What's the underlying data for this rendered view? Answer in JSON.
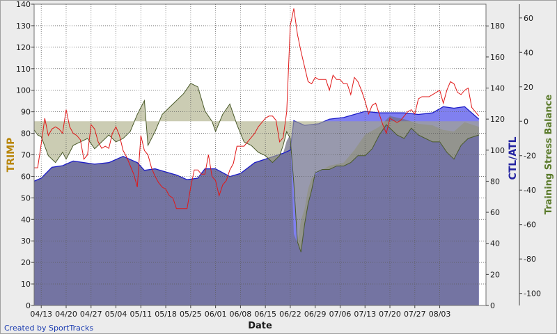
{
  "credit": "Created by SportTracks",
  "colors": {
    "trimp": "#e01818",
    "ctl_fill": "#8080f0",
    "ctl_line": "#1c1cc8",
    "atl_fill": "#707088",
    "tsb_fill": "#a8aa80",
    "tsb_line": "#4a5a2a",
    "left_axis_label": "#b8860b",
    "middle_axis_label": "#2020a0",
    "right_axis_label": "#5a7a2a"
  },
  "chart_data": {
    "type": "line",
    "xlabel": "Date",
    "x_ticks": [
      "04/13",
      "04/20",
      "04/27",
      "05/04",
      "05/11",
      "05/18",
      "05/25",
      "06/01",
      "06/08",
      "06/15",
      "06/22",
      "06/29",
      "07/06",
      "07/13",
      "07/20",
      "07/27",
      "08/03"
    ],
    "x_range": [
      "04/11",
      "08/16"
    ],
    "grid": true,
    "axes": {
      "left": {
        "label": "TRIMP",
        "ylim": [
          0,
          140
        ],
        "ticks": [
          0,
          10,
          20,
          30,
          40,
          50,
          60,
          70,
          80,
          90,
          100,
          110,
          120,
          130,
          140
        ]
      },
      "middle": {
        "label": "CTL/ATL",
        "ylim": [
          0,
          194
        ],
        "ticks": [
          0,
          20,
          40,
          60,
          80,
          100,
          120,
          140,
          160,
          180
        ]
      },
      "right": {
        "label": "Training Stress Balance",
        "ylim": [
          -107,
          68
        ],
        "ticks": [
          -100,
          -80,
          -60,
          -40,
          -20,
          0,
          20,
          40,
          60
        ]
      }
    },
    "series": [
      {
        "name": "CTL",
        "axis": "middle",
        "style": "filled area",
        "x": [
          "04/11",
          "04/13",
          "04/16",
          "04/19",
          "04/22",
          "04/25",
          "04/28",
          "05/02",
          "05/06",
          "05/10",
          "05/12",
          "05/15",
          "05/18",
          "05/21",
          "05/24",
          "05/27",
          "05/29",
          "06/01",
          "06/05",
          "06/08",
          "06/12",
          "06/16",
          "06/20",
          "06/22",
          "06/23",
          "06/26",
          "06/30",
          "07/03",
          "07/07",
          "07/10",
          "07/13",
          "07/17",
          "07/20",
          "07/24",
          "07/28",
          "08/01",
          "08/04",
          "08/07",
          "08/10",
          "08/14"
        ],
        "values": [
          80,
          82,
          89,
          90,
          93,
          92,
          91,
          92,
          96,
          92,
          87,
          88,
          86,
          84,
          81,
          82,
          88,
          88,
          83,
          85,
          92,
          95,
          98,
          100,
          119,
          116,
          117,
          120,
          121,
          123,
          125,
          124,
          124,
          124,
          123,
          124,
          128,
          127,
          128,
          120
        ]
      },
      {
        "name": "ATL",
        "axis": "middle",
        "style": "filled area",
        "x": [
          "04/11",
          "04/13",
          "04/16",
          "04/19",
          "04/22",
          "04/25",
          "04/28",
          "05/02",
          "05/06",
          "05/10",
          "05/12",
          "05/15",
          "05/18",
          "05/21",
          "05/24",
          "05/27",
          "05/29",
          "06/01",
          "06/05",
          "06/08",
          "06/12",
          "06/16",
          "06/20",
          "06/21",
          "06/22",
          "06/23",
          "06/24",
          "06/25",
          "06/26",
          "06/27",
          "06/28",
          "06/30",
          "07/03",
          "07/07",
          "07/10",
          "07/13",
          "07/17",
          "07/20",
          "07/24",
          "07/28",
          "08/01",
          "08/04",
          "08/07",
          "08/10",
          "08/14"
        ],
        "values": [
          80,
          82,
          89,
          90,
          93,
          92,
          91,
          92,
          96,
          92,
          87,
          88,
          86,
          84,
          81,
          82,
          88,
          88,
          83,
          85,
          92,
          95,
          98,
          106,
          110,
          46,
          40,
          55,
          62,
          75,
          82,
          86,
          90,
          92,
          100,
          110,
          115,
          122,
          120,
          117,
          116,
          113,
          112,
          118,
          115
        ]
      },
      {
        "name": "TRIMP",
        "axis": "left",
        "style": "line",
        "x": [
          "04/11",
          "04/12",
          "04/13",
          "04/14",
          "04/15",
          "04/16",
          "04/17",
          "04/18",
          "04/19",
          "04/20",
          "04/21",
          "04/22",
          "04/23",
          "04/24",
          "04/25",
          "04/26",
          "04/27",
          "04/28",
          "04/29",
          "04/30",
          "05/01",
          "05/02",
          "05/03",
          "05/04",
          "05/05",
          "05/06",
          "05/07",
          "05/08",
          "05/09",
          "05/10",
          "05/11",
          "05/12",
          "05/13",
          "05/14",
          "05/15",
          "05/16",
          "05/17",
          "05/18",
          "05/19",
          "05/20",
          "05/21",
          "05/22",
          "05/23",
          "05/24",
          "05/25",
          "05/26",
          "05/27",
          "05/28",
          "05/29",
          "05/30",
          "05/31",
          "06/01",
          "06/02",
          "06/03",
          "06/04",
          "06/05",
          "06/06",
          "06/07",
          "06/08",
          "06/09",
          "06/10",
          "06/11",
          "06/12",
          "06/13",
          "06/14",
          "06/15",
          "06/16",
          "06/17",
          "06/18",
          "06/19",
          "06/20",
          "06/21",
          "06/22",
          "06/23",
          "06/24",
          "06/25",
          "06/26",
          "06/27",
          "06/28",
          "06/29",
          "06/30",
          "07/01",
          "07/02",
          "07/03",
          "07/04",
          "07/05",
          "07/06",
          "07/07",
          "07/08",
          "07/09",
          "07/10",
          "07/11",
          "07/12",
          "07/13",
          "07/14",
          "07/15",
          "07/16",
          "07/17",
          "07/18",
          "07/19",
          "07/20",
          "07/21",
          "07/22",
          "07/23",
          "07/24",
          "07/25",
          "07/26",
          "07/27",
          "07/28",
          "07/29",
          "07/30",
          "07/31",
          "08/01",
          "08/02",
          "08/03",
          "08/04",
          "08/05",
          "08/06",
          "08/07",
          "08/08",
          "08/09",
          "08/10",
          "08/11",
          "08/12",
          "08/13",
          "08/14"
        ],
        "values": [
          64,
          64,
          75,
          87,
          79,
          82,
          83,
          82,
          80,
          91,
          83,
          80,
          79,
          77,
          68,
          70,
          84,
          82,
          76,
          73,
          74,
          73,
          80,
          83,
          79,
          72,
          69,
          65,
          61,
          55,
          79,
          72,
          70,
          64,
          60,
          57,
          55,
          54,
          51,
          50,
          45,
          45,
          45,
          45,
          55,
          63,
          63,
          61,
          61,
          70,
          60,
          58,
          51,
          56,
          58,
          63,
          66,
          74,
          74,
          74,
          76,
          78,
          80,
          83,
          85,
          87,
          88,
          88,
          86,
          76,
          78,
          90,
          130,
          138,
          126,
          118,
          111,
          104,
          103,
          106,
          105,
          105,
          105,
          100,
          107,
          105,
          105,
          103,
          103,
          98,
          106,
          104,
          100,
          95,
          89,
          93,
          94,
          89,
          84,
          80,
          87,
          86,
          85,
          86,
          88,
          90,
          91,
          89,
          96,
          97,
          97,
          97,
          98,
          99,
          100,
          94,
          100,
          104,
          103,
          99,
          98,
          100,
          101,
          92,
          90,
          88
        ]
      },
      {
        "name": "Training Stress Balance",
        "axis": "right",
        "style": "filled area from zero",
        "x": [
          "04/11",
          "04/12",
          "04/13",
          "04/15",
          "04/17",
          "04/19",
          "04/20",
          "04/22",
          "04/24",
          "04/26",
          "04/28",
          "04/30",
          "05/02",
          "05/04",
          "05/06",
          "05/08",
          "05/10",
          "05/12",
          "05/13",
          "05/15",
          "05/17",
          "05/19",
          "05/21",
          "05/23",
          "05/25",
          "05/27",
          "05/29",
          "05/31",
          "06/01",
          "06/03",
          "06/05",
          "06/07",
          "06/09",
          "06/11",
          "06/13",
          "06/15",
          "06/17",
          "06/19",
          "06/20",
          "06/21",
          "06/22",
          "06/23",
          "06/24",
          "06/25",
          "06/26",
          "06/27",
          "06/28",
          "06/29",
          "07/01",
          "07/03",
          "07/05",
          "07/07",
          "07/09",
          "07/11",
          "07/13",
          "07/15",
          "07/17",
          "07/19",
          "07/20",
          "07/22",
          "07/24",
          "07/26",
          "07/28",
          "07/30",
          "08/01",
          "08/03",
          "08/05",
          "08/07",
          "08/09",
          "08/11",
          "08/14"
        ],
        "values": [
          -5,
          -8,
          -9,
          -20,
          -24,
          -18,
          -22,
          -14,
          -12,
          -10,
          -16,
          -12,
          -8,
          -12,
          -10,
          -6,
          4,
          12,
          -14,
          -6,
          4,
          8,
          12,
          16,
          22,
          20,
          6,
          0,
          -6,
          4,
          10,
          -2,
          -12,
          -14,
          -18,
          -20,
          -24,
          -20,
          -14,
          -6,
          -10,
          -36,
          -70,
          -76,
          -60,
          -48,
          -40,
          -30,
          -28,
          -28,
          -26,
          -26,
          -24,
          -20,
          -20,
          -16,
          -8,
          -2,
          -4,
          -8,
          -10,
          -4,
          -8,
          -10,
          -12,
          -12,
          -18,
          -22,
          -14,
          -10,
          -8
        ]
      }
    ]
  }
}
